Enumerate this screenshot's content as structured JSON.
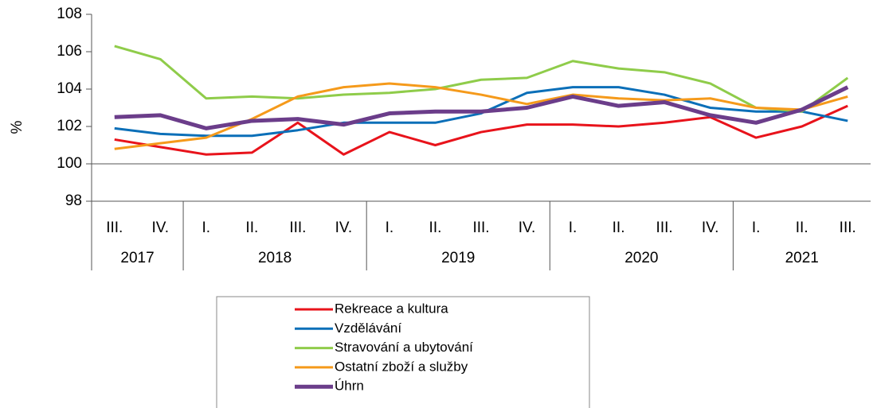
{
  "chart_data": {
    "type": "line",
    "y_label": "%",
    "categories": [
      "III.",
      "IV.",
      "I.",
      "II.",
      "III.",
      "IV.",
      "I.",
      "II.",
      "III.",
      "IV.",
      "I.",
      "II.",
      "III.",
      "IV.",
      "I.",
      "II.",
      "III."
    ],
    "groups": [
      {
        "label": "2017",
        "span": 2
      },
      {
        "label": "2018",
        "span": 4
      },
      {
        "label": "2019",
        "span": 4
      },
      {
        "label": "2020",
        "span": 4
      },
      {
        "label": "2021",
        "span": 3
      }
    ],
    "ylim": [
      98,
      108
    ],
    "yticks": [
      98,
      100,
      102,
      104,
      106,
      108
    ],
    "x_axis_at": 100,
    "series": [
      {
        "name": "Rekreace a kultura",
        "color": "#e8131b",
        "values": [
          101.3,
          100.9,
          100.5,
          100.6,
          102.2,
          100.5,
          101.7,
          101.0,
          101.7,
          102.1,
          102.1,
          102.0,
          102.2,
          102.5,
          101.4,
          102.0,
          103.1
        ]
      },
      {
        "name": "Vzdělávání",
        "color": "#0b6fb8",
        "values": [
          101.9,
          101.6,
          101.5,
          101.5,
          101.8,
          102.2,
          102.2,
          102.2,
          102.7,
          103.8,
          104.1,
          104.1,
          103.7,
          103.0,
          102.8,
          102.8,
          102.3
        ]
      },
      {
        "name": "Stravování a ubytování",
        "color": "#8fcc4a",
        "values": [
          106.3,
          105.6,
          103.5,
          103.6,
          103.5,
          103.7,
          103.8,
          104.0,
          104.5,
          104.6,
          105.5,
          105.1,
          104.9,
          104.3,
          103.0,
          102.8,
          104.6
        ]
      },
      {
        "name": "Ostatní zboží a služby",
        "color": "#f59a1b",
        "values": [
          100.8,
          101.1,
          101.4,
          102.4,
          103.6,
          104.1,
          104.3,
          104.1,
          103.7,
          103.2,
          103.7,
          103.5,
          103.4,
          103.5,
          103.0,
          102.9,
          103.6
        ]
      },
      {
        "name": "Úhrn",
        "color": "#6b3d8a",
        "values": [
          102.5,
          102.6,
          101.9,
          102.3,
          102.4,
          102.1,
          102.7,
          102.8,
          102.8,
          103.0,
          103.6,
          103.1,
          103.3,
          102.6,
          102.2,
          102.9,
          104.1
        ]
      }
    ]
  }
}
